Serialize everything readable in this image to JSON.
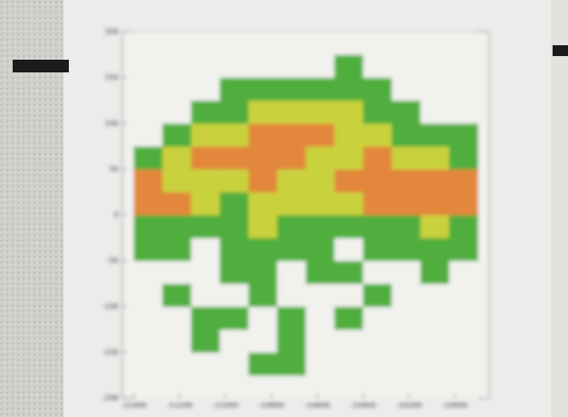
{
  "chart_data": {
    "type": "heatmap",
    "x_edges": [
      -11400,
      -11275,
      -11150,
      -11025,
      -10900,
      -10775,
      -10650,
      -10525,
      -10400,
      -10275,
      -10150,
      -10025,
      -9900
    ],
    "y_edges": [
      -200,
      -175,
      -150,
      -125,
      -100,
      -75,
      -50,
      -25,
      0,
      25,
      50,
      75,
      100,
      125,
      150,
      175,
      200
    ],
    "z": [
      [
        0,
        0,
        0,
        0,
        0,
        0,
        0,
        0,
        0,
        0,
        0,
        0
      ],
      [
        0,
        0,
        0,
        0,
        1,
        1,
        0,
        0,
        0,
        0,
        0,
        0
      ],
      [
        0,
        0,
        1,
        0,
        0,
        1,
        0,
        0,
        0,
        0,
        0,
        0
      ],
      [
        0,
        0,
        1,
        1,
        0,
        1,
        0,
        1,
        0,
        0,
        0,
        0
      ],
      [
        0,
        1,
        0,
        0,
        1,
        0,
        0,
        0,
        1,
        0,
        0,
        0
      ],
      [
        0,
        0,
        0,
        1,
        1,
        0,
        1,
        1,
        0,
        0,
        1,
        0
      ],
      [
        1,
        1,
        0,
        1,
        1,
        1,
        1,
        0,
        1,
        1,
        1,
        1
      ],
      [
        1,
        1,
        1,
        1,
        2,
        1,
        1,
        1,
        1,
        1,
        2,
        1
      ],
      [
        3,
        3,
        2,
        1,
        2,
        2,
        2,
        2,
        3,
        3,
        3,
        3
      ],
      [
        3,
        2,
        2,
        2,
        3,
        2,
        2,
        3,
        3,
        3,
        3,
        3
      ],
      [
        1,
        2,
        3,
        3,
        3,
        3,
        2,
        2,
        3,
        2,
        2,
        1
      ],
      [
        0,
        1,
        2,
        2,
        3,
        3,
        3,
        2,
        2,
        1,
        1,
        1
      ],
      [
        0,
        0,
        1,
        1,
        2,
        2,
        2,
        2,
        1,
        1,
        0,
        0
      ],
      [
        0,
        0,
        0,
        1,
        1,
        1,
        1,
        1,
        1,
        0,
        0,
        0
      ],
      [
        0,
        0,
        0,
        0,
        0,
        0,
        0,
        1,
        0,
        0,
        0,
        0
      ],
      [
        0,
        0,
        0,
        0,
        0,
        0,
        0,
        0,
        0,
        0,
        0,
        0
      ]
    ],
    "colors": [
      "#f1f1ee",
      "#4fae3e",
      "#c9d23c",
      "#e2873b"
    ],
    "xlim": [
      -11450,
      -9850
    ],
    "ylim": [
      -200,
      200
    ],
    "xticks": [
      -11400,
      -11200,
      -11000,
      -10800,
      -10600,
      -10400,
      -10200,
      -10000
    ],
    "yticks": [
      -200,
      -150,
      -100,
      -50,
      0,
      50,
      100,
      150,
      200
    ]
  }
}
